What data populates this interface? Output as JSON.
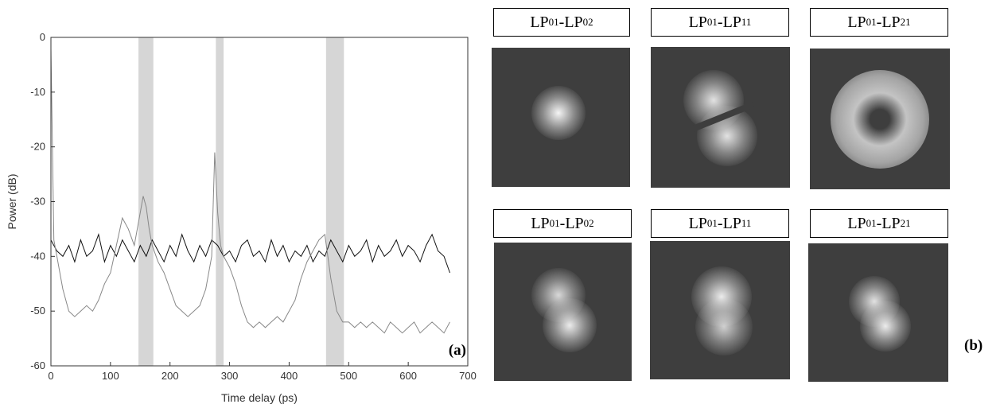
{
  "chart_data": {
    "type": "line",
    "xlabel": "Time delay (ps)",
    "ylabel": "Power (dB)",
    "xlim": [
      0,
      700
    ],
    "ylim": [
      -60,
      0
    ],
    "xticks": [
      0,
      100,
      200,
      300,
      400,
      500,
      600,
      700
    ],
    "yticks": [
      0,
      -10,
      -20,
      -30,
      -40,
      -50,
      -60
    ],
    "grid": false,
    "highlight_bands": [
      [
        147,
        172
      ],
      [
        277,
        290
      ],
      [
        462,
        492
      ]
    ],
    "series": [
      {
        "color": "#111111",
        "x": [
          0,
          10,
          20,
          30,
          40,
          50,
          60,
          70,
          80,
          90,
          100,
          110,
          120,
          130,
          140,
          150,
          160,
          170,
          180,
          190,
          200,
          210,
          220,
          230,
          240,
          250,
          260,
          270,
          280,
          290,
          300,
          310,
          320,
          330,
          340,
          350,
          360,
          370,
          380,
          390,
          400,
          410,
          420,
          430,
          440,
          450,
          460,
          470,
          480,
          490,
          500,
          510,
          520,
          530,
          540,
          550,
          560,
          570,
          580,
          590,
          600,
          610,
          620,
          630,
          640,
          650,
          660,
          670
        ],
        "values": [
          -37,
          -39,
          -40,
          -38,
          -41,
          -37,
          -40,
          -39,
          -36,
          -41,
          -38,
          -40,
          -37,
          -39,
          -41,
          -38,
          -40,
          -37,
          -39,
          -41,
          -38,
          -40,
          -36,
          -39,
          -41,
          -38,
          -40,
          -37,
          -38,
          -40,
          -39,
          -41,
          -38,
          -37,
          -40,
          -39,
          -41,
          -37,
          -40,
          -38,
          -41,
          -39,
          -40,
          -38,
          -41,
          -39,
          -40,
          -37,
          -39,
          -41,
          -38,
          -40,
          -39,
          -37,
          -41,
          -38,
          -40,
          -39,
          -37,
          -40,
          -38,
          -39,
          -41,
          -38,
          -36,
          -39,
          -40,
          -43
        ]
      },
      {
        "color": "#888888",
        "x": [
          0,
          5,
          10,
          20,
          30,
          40,
          50,
          60,
          70,
          80,
          90,
          100,
          110,
          120,
          130,
          140,
          150,
          155,
          160,
          165,
          170,
          180,
          190,
          200,
          210,
          220,
          230,
          240,
          250,
          260,
          270,
          275,
          280,
          285,
          290,
          300,
          310,
          320,
          330,
          340,
          350,
          360,
          370,
          380,
          390,
          400,
          410,
          420,
          430,
          440,
          450,
          460,
          465,
          470,
          475,
          480,
          490,
          500,
          510,
          520,
          530,
          540,
          550,
          560,
          570,
          580,
          590,
          600,
          610,
          620,
          630,
          640,
          650,
          660,
          670
        ],
        "values": [
          -2,
          -37,
          -40,
          -46,
          -50,
          -51,
          -50,
          -49,
          -50,
          -48,
          -45,
          -43,
          -38,
          -33,
          -35,
          -38,
          -32,
          -29,
          -31,
          -35,
          -38,
          -41,
          -43,
          -46,
          -49,
          -50,
          -51,
          -50,
          -49,
          -46,
          -40,
          -21,
          -32,
          -38,
          -40,
          -42,
          -45,
          -49,
          -52,
          -53,
          -52,
          -53,
          -52,
          -51,
          -52,
          -50,
          -48,
          -44,
          -41,
          -39,
          -37,
          -36,
          -40,
          -44,
          -47,
          -50,
          -52,
          -52,
          -53,
          -52,
          -53,
          -52,
          -53,
          -54,
          -52,
          -53,
          -54,
          -53,
          -52,
          -54,
          -53,
          -52,
          -53,
          -54,
          -52
        ]
      }
    ],
    "annotation": "(a)"
  },
  "panel_b": {
    "tag": "(b)",
    "rows": [
      [
        {
          "base": "LP",
          "sub1": "01",
          "mid": "-LP",
          "sub2": "02"
        },
        {
          "base": "LP",
          "sub1": "01",
          "mid": "-LP",
          "sub2": "11"
        },
        {
          "base": "LP",
          "sub1": "01",
          "mid": "-LP",
          "sub2": "21"
        }
      ],
      [
        {
          "base": "LP",
          "sub1": "01",
          "mid": "-LP",
          "sub2": "02"
        },
        {
          "base": "LP",
          "sub1": "01",
          "mid": "-LP",
          "sub2": "11"
        },
        {
          "base": "LP",
          "sub1": "01",
          "mid": "-LP",
          "sub2": "21"
        }
      ]
    ]
  }
}
